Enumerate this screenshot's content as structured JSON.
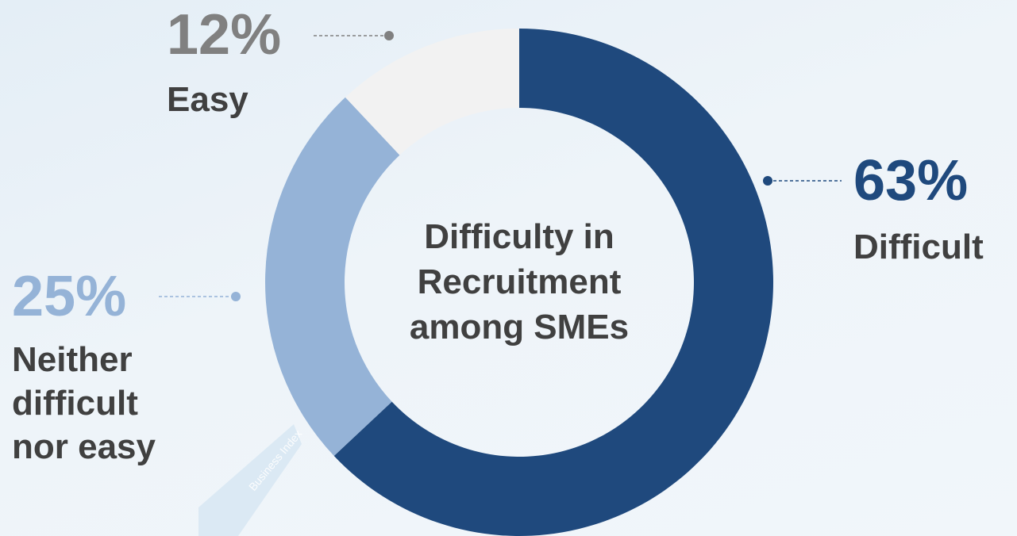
{
  "chart_data": {
    "type": "pie",
    "donut": true,
    "title": "Difficulty in Recruitment among SMEs",
    "categories": [
      "Difficult",
      "Neither difficult nor easy",
      "Easy"
    ],
    "values": [
      63,
      25,
      12
    ],
    "value_labels": [
      "63%",
      "25%",
      "12%"
    ],
    "colors": [
      "#1f497d",
      "#95b3d7",
      "#f2f2f2"
    ],
    "label_colors": [
      "#1f497d",
      "#95b3d7",
      "#808080"
    ],
    "watermark": "Business Index"
  }
}
